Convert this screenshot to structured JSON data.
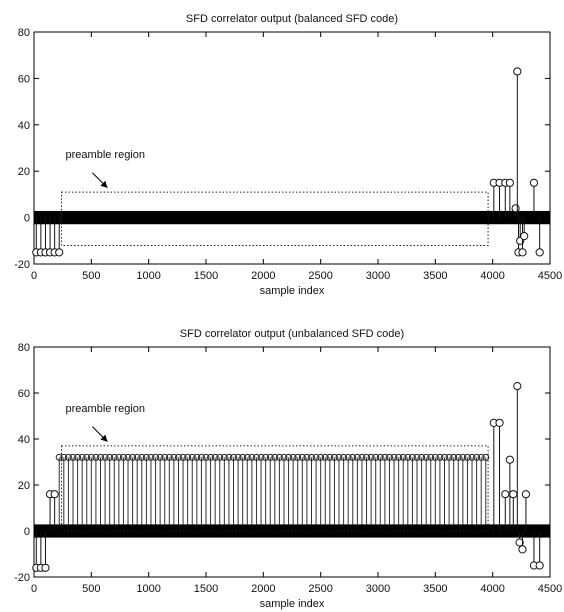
{
  "chart_data": [
    {
      "type": "stem",
      "title": "SFD correlator output (balanced SFD code)",
      "xlabel": "sample index",
      "ylabel": "",
      "xlim": [
        0,
        4500
      ],
      "ylim": [
        -20,
        80
      ],
      "xticks": [
        0,
        500,
        1000,
        1500,
        2000,
        2500,
        3000,
        3500,
        4000,
        4500
      ],
      "yticks": [
        -20,
        0,
        20,
        40,
        60,
        80
      ],
      "grid": false,
      "annotation": {
        "text": "preamble region",
        "box_x": [
          240,
          3960
        ],
        "box_y": [
          -12,
          11
        ],
        "arrow_to": [
          640,
          12
        ]
      },
      "points": [
        [
          20,
          -15
        ],
        [
          60,
          -15
        ],
        [
          100,
          -15
        ],
        [
          140,
          -15
        ],
        [
          180,
          -15
        ],
        [
          220,
          -15
        ],
        [
          4010,
          15
        ],
        [
          4060,
          15
        ],
        [
          4110,
          15
        ],
        [
          4150,
          15
        ],
        [
          4200,
          4
        ],
        [
          4215,
          63
        ],
        [
          4225,
          -15
        ],
        [
          4240,
          -10
        ],
        [
          4260,
          -15
        ],
        [
          4275,
          -8
        ],
        [
          4360,
          15
        ],
        [
          4410,
          -15
        ]
      ],
      "dense_band": {
        "x": [
          0,
          4500
        ],
        "y": [
          -2,
          2
        ]
      }
    },
    {
      "type": "stem",
      "title": "SFD correlator output (unbalanced SFD code)",
      "xlabel": "sample index",
      "ylabel": "",
      "xlim": [
        0,
        4500
      ],
      "ylim": [
        -20,
        80
      ],
      "xticks": [
        0,
        500,
        1000,
        1500,
        2000,
        2500,
        3000,
        3500,
        4000,
        4500
      ],
      "yticks": [
        -20,
        0,
        20,
        40,
        60,
        80
      ],
      "grid": false,
      "annotation": {
        "text": "preamble region",
        "box_x": [
          240,
          3960
        ],
        "box_y": [
          0,
          37
        ],
        "arrow_to": [
          640,
          38
        ]
      },
      "points": [
        [
          20,
          -16
        ],
        [
          60,
          -16
        ],
        [
          100,
          -16
        ],
        [
          140,
          16
        ],
        [
          180,
          16
        ],
        [
          4010,
          47
        ],
        [
          4060,
          47
        ],
        [
          4110,
          16
        ],
        [
          4150,
          31
        ],
        [
          4180,
          16
        ],
        [
          4215,
          63
        ],
        [
          4235,
          -5
        ],
        [
          4260,
          -8
        ],
        [
          4290,
          16
        ],
        [
          4360,
          -15
        ],
        [
          4410,
          -15
        ]
      ],
      "periodic_stems": {
        "x_start": 220,
        "x_end": 3960,
        "step": 40,
        "value": 32
      },
      "dense_band": {
        "x": [
          0,
          4500
        ],
        "y": [
          -2,
          2
        ]
      }
    }
  ]
}
